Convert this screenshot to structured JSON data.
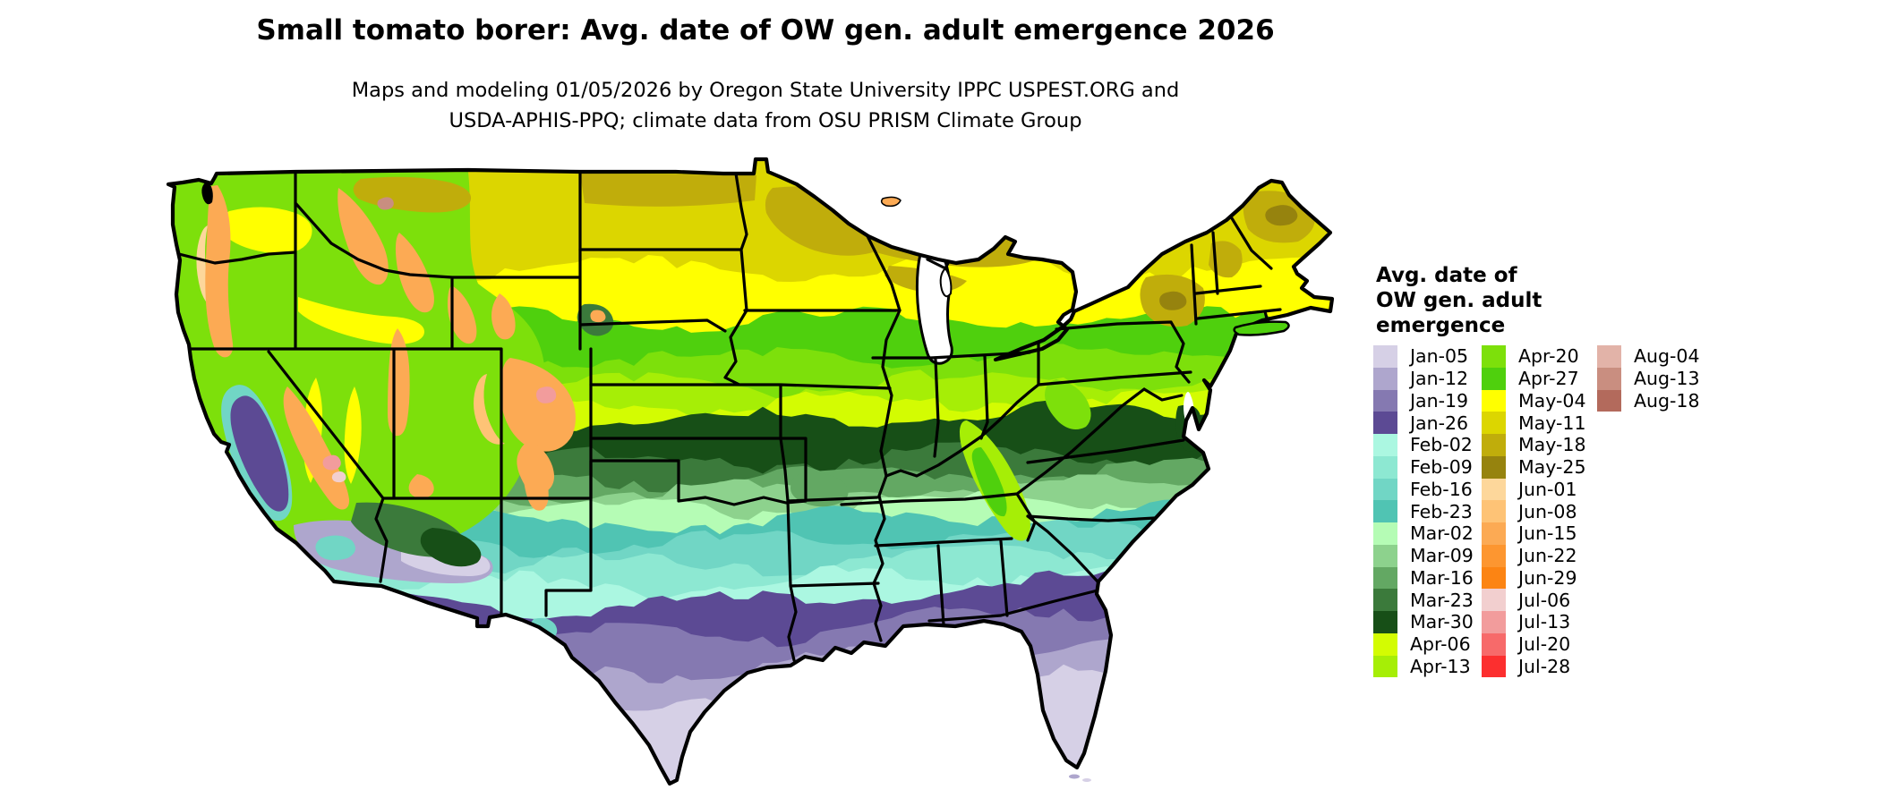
{
  "title": "Small tomato borer: Avg. date of OW gen. adult emergence 2026",
  "subtitle": {
    "line1": "Maps and modeling 01/05/2026 by Oregon State University IPPC USPEST.ORG and",
    "line2": "USDA-APHIS-PPQ; climate data from OSU PRISM Climate Group"
  },
  "legend": {
    "title_lines": [
      "Avg. date of",
      "OW gen. adult",
      "emergence"
    ],
    "items": [
      {
        "label": "Jan-05",
        "color": "#d6d0e6"
      },
      {
        "label": "Jan-12",
        "color": "#aea6cd"
      },
      {
        "label": "Jan-19",
        "color": "#8579b1"
      },
      {
        "label": "Jan-26",
        "color": "#5c4a94"
      },
      {
        "label": "Feb-02",
        "color": "#abf7e1"
      },
      {
        "label": "Feb-09",
        "color": "#8de8d2"
      },
      {
        "label": "Feb-16",
        "color": "#71d6c5"
      },
      {
        "label": "Feb-23",
        "color": "#50c4b3"
      },
      {
        "label": "Mar-02",
        "color": "#b5fcb5"
      },
      {
        "label": "Mar-09",
        "color": "#8dd28d"
      },
      {
        "label": "Mar-16",
        "color": "#63a863"
      },
      {
        "label": "Mar-23",
        "color": "#3b7a3b"
      },
      {
        "label": "Mar-30",
        "color": "#174f17"
      },
      {
        "label": "Apr-06",
        "color": "#d3fc02"
      },
      {
        "label": "Apr-13",
        "color": "#a6ee06"
      },
      {
        "label": "Apr-20",
        "color": "#7de00b"
      },
      {
        "label": "Apr-27",
        "color": "#4fd00d"
      },
      {
        "label": "May-04",
        "color": "#ffff00"
      },
      {
        "label": "May-11",
        "color": "#dcd600"
      },
      {
        "label": "May-18",
        "color": "#c0ad0b"
      },
      {
        "label": "May-25",
        "color": "#96830e"
      },
      {
        "label": "Jun-01",
        "color": "#fdd79b"
      },
      {
        "label": "Jun-08",
        "color": "#fec376"
      },
      {
        "label": "Jun-15",
        "color": "#fcaa54"
      },
      {
        "label": "Jun-22",
        "color": "#fd9630"
      },
      {
        "label": "Jun-29",
        "color": "#fc8413"
      },
      {
        "label": "Jul-06",
        "color": "#f2cfcf"
      },
      {
        "label": "Jul-13",
        "color": "#f29c9c"
      },
      {
        "label": "Jul-20",
        "color": "#f76a6a"
      },
      {
        "label": "Jul-28",
        "color": "#fc2f2f"
      },
      {
        "label": "Aug-04",
        "color": "#e2b3a8"
      },
      {
        "label": "Aug-13",
        "color": "#c98e80"
      },
      {
        "label": "Aug-18",
        "color": "#b36a5c"
      }
    ]
  },
  "map": {
    "region": "Continental United States with state boundaries",
    "style": "raster date-class map",
    "bands_north_to_south": [
      "May-18",
      "May-11",
      "May-04",
      "Apr-27",
      "Apr-20",
      "Apr-13",
      "Apr-06",
      "Mar-30",
      "Mar-23",
      "Mar-16",
      "Mar-09",
      "Mar-02",
      "Feb-23",
      "Feb-16",
      "Feb-09",
      "Feb-02",
      "Jan-26",
      "Jan-19",
      "Jan-12",
      "Jan-05"
    ],
    "notes": "Earliest emergence (Jan, purple) along Gulf coast, south Texas, Florida and California Central Valley; latest classes (Jun-Aug, orange/pink/brown) in high-elevation western mountains; northern plains and New England in May (yellow/olive)."
  }
}
